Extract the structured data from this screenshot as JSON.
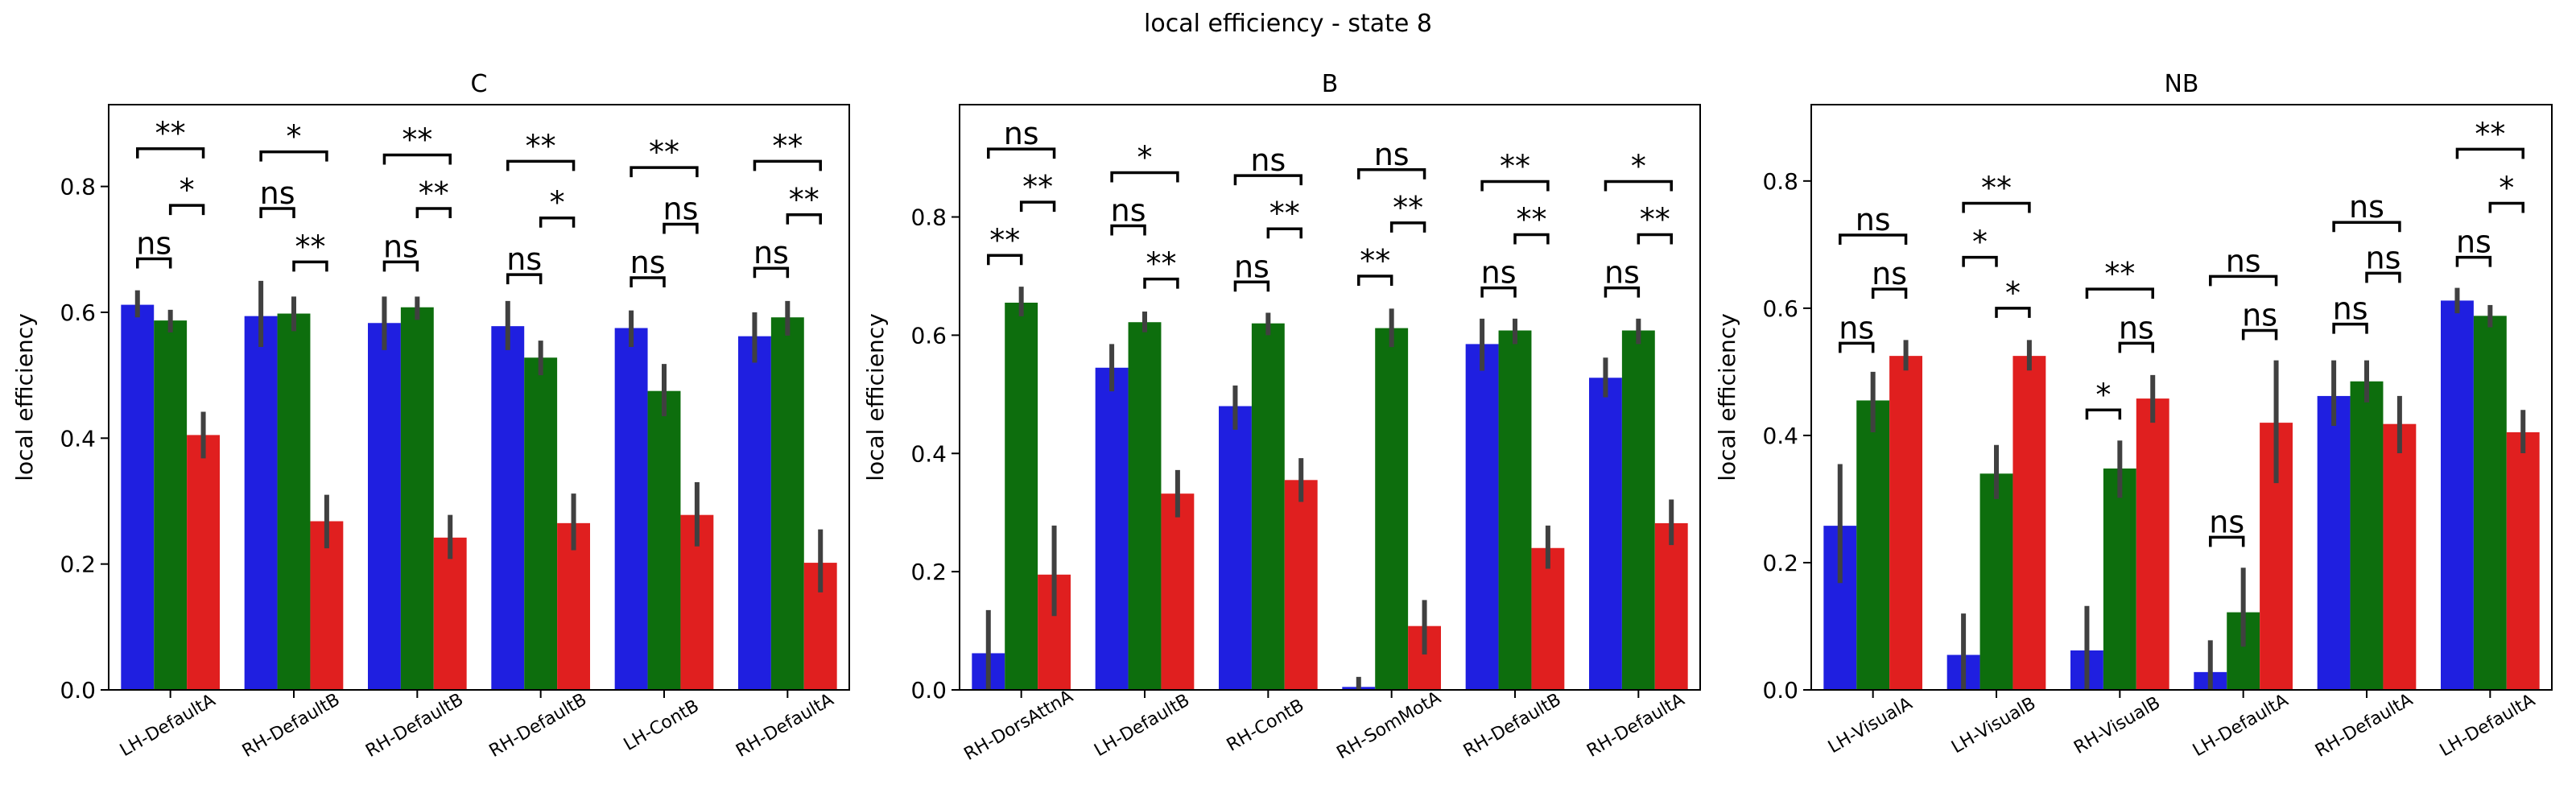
{
  "suptitle": "local efficiency - state 8",
  "colors": {
    "series": [
      "#1f1fe0",
      "#0d6e0d",
      "#e01f1f"
    ],
    "error_bar": "#404040"
  },
  "chart_data": [
    {
      "type": "bar",
      "title": "C",
      "ylabel": "local efficiency",
      "ylim": [
        0,
        0.93
      ],
      "yticks": [
        0.0,
        0.2,
        0.4,
        0.6,
        0.8
      ],
      "categories": [
        "LH-DefaultA",
        "RH-DefaultB",
        "RH-DefaultB",
        "RH-DefaultB",
        "LH-ContB",
        "RH-DefaultA"
      ],
      "series": [
        {
          "values": [
            0.612,
            0.594,
            0.583,
            0.578,
            0.575,
            0.562
          ],
          "err_low": [
            0.592,
            0.545,
            0.54,
            0.54,
            0.545,
            0.52
          ],
          "err_high": [
            0.635,
            0.65,
            0.625,
            0.618,
            0.603,
            0.6
          ]
        },
        {
          "values": [
            0.587,
            0.598,
            0.608,
            0.528,
            0.475,
            0.592
          ],
          "err_low": [
            0.568,
            0.57,
            0.588,
            0.5,
            0.435,
            0.563
          ],
          "err_high": [
            0.604,
            0.625,
            0.625,
            0.555,
            0.518,
            0.618
          ]
        },
        {
          "values": [
            0.405,
            0.268,
            0.242,
            0.265,
            0.278,
            0.202
          ],
          "err_low": [
            0.368,
            0.225,
            0.208,
            0.222,
            0.228,
            0.155
          ],
          "err_high": [
            0.442,
            0.31,
            0.278,
            0.312,
            0.33,
            0.255
          ]
        }
      ],
      "annotations": [
        {
          "group": 0,
          "from": 0,
          "to": 1,
          "y": 0.685,
          "label": "ns"
        },
        {
          "group": 0,
          "from": 1,
          "to": 2,
          "y": 0.77,
          "label": "*"
        },
        {
          "group": 0,
          "from": 0,
          "to": 2,
          "y": 0.86,
          "label": "**"
        },
        {
          "group": 1,
          "from": 0,
          "to": 1,
          "y": 0.765,
          "label": "ns"
        },
        {
          "group": 1,
          "from": 1,
          "to": 2,
          "y": 0.68,
          "label": "**"
        },
        {
          "group": 1,
          "from": 0,
          "to": 2,
          "y": 0.855,
          "label": "*"
        },
        {
          "group": 2,
          "from": 0,
          "to": 1,
          "y": 0.68,
          "label": "ns"
        },
        {
          "group": 2,
          "from": 1,
          "to": 2,
          "y": 0.765,
          "label": "**"
        },
        {
          "group": 2,
          "from": 0,
          "to": 2,
          "y": 0.85,
          "label": "**"
        },
        {
          "group": 3,
          "from": 0,
          "to": 1,
          "y": 0.66,
          "label": "ns"
        },
        {
          "group": 3,
          "from": 1,
          "to": 2,
          "y": 0.75,
          "label": "*"
        },
        {
          "group": 3,
          "from": 0,
          "to": 2,
          "y": 0.84,
          "label": "**"
        },
        {
          "group": 4,
          "from": 0,
          "to": 1,
          "y": 0.655,
          "label": "ns"
        },
        {
          "group": 4,
          "from": 1,
          "to": 2,
          "y": 0.74,
          "label": "ns"
        },
        {
          "group": 4,
          "from": 0,
          "to": 2,
          "y": 0.83,
          "label": "**"
        },
        {
          "group": 5,
          "from": 0,
          "to": 1,
          "y": 0.67,
          "label": "ns"
        },
        {
          "group": 5,
          "from": 1,
          "to": 2,
          "y": 0.755,
          "label": "**"
        },
        {
          "group": 5,
          "from": 0,
          "to": 2,
          "y": 0.84,
          "label": "**"
        }
      ]
    },
    {
      "type": "bar",
      "title": "B",
      "ylabel": "local efficiency",
      "ylim": [
        0,
        0.99
      ],
      "yticks": [
        0.0,
        0.2,
        0.4,
        0.6,
        0.8
      ],
      "categories": [
        "RH-DorsAttnA",
        "LH-DefaultB",
        "RH-ContB",
        "RH-SomMotA",
        "RH-DefaultB",
        "RH-DefaultA"
      ],
      "series": [
        {
          "values": [
            0.062,
            0.545,
            0.48,
            0.005,
            0.585,
            0.528
          ],
          "err_low": [
            0.0,
            0.505,
            0.44,
            0.0,
            0.54,
            0.495
          ],
          "err_high": [
            0.135,
            0.585,
            0.515,
            0.022,
            0.628,
            0.562
          ]
        },
        {
          "values": [
            0.655,
            0.622,
            0.62,
            0.612,
            0.608,
            0.608
          ],
          "err_low": [
            0.632,
            0.605,
            0.6,
            0.58,
            0.585,
            0.585
          ],
          "err_high": [
            0.682,
            0.64,
            0.638,
            0.645,
            0.628,
            0.628
          ]
        },
        {
          "values": [
            0.195,
            0.332,
            0.355,
            0.108,
            0.24,
            0.282
          ],
          "err_low": [
            0.125,
            0.292,
            0.318,
            0.06,
            0.205,
            0.245
          ],
          "err_high": [
            0.278,
            0.372,
            0.392,
            0.152,
            0.278,
            0.322
          ]
        }
      ],
      "annotations": [
        {
          "group": 0,
          "from": 0,
          "to": 1,
          "y": 0.735,
          "label": "**"
        },
        {
          "group": 0,
          "from": 1,
          "to": 2,
          "y": 0.825,
          "label": "**"
        },
        {
          "group": 0,
          "from": 0,
          "to": 2,
          "y": 0.915,
          "label": "ns"
        },
        {
          "group": 1,
          "from": 0,
          "to": 1,
          "y": 0.785,
          "label": "ns"
        },
        {
          "group": 1,
          "from": 1,
          "to": 2,
          "y": 0.695,
          "label": "**"
        },
        {
          "group": 1,
          "from": 0,
          "to": 2,
          "y": 0.875,
          "label": "*"
        },
        {
          "group": 2,
          "from": 0,
          "to": 1,
          "y": 0.69,
          "label": "ns"
        },
        {
          "group": 2,
          "from": 1,
          "to": 2,
          "y": 0.78,
          "label": "**"
        },
        {
          "group": 2,
          "from": 0,
          "to": 2,
          "y": 0.87,
          "label": "ns"
        },
        {
          "group": 3,
          "from": 0,
          "to": 1,
          "y": 0.7,
          "label": "**"
        },
        {
          "group": 3,
          "from": 1,
          "to": 2,
          "y": 0.79,
          "label": "**"
        },
        {
          "group": 3,
          "from": 0,
          "to": 2,
          "y": 0.88,
          "label": "ns"
        },
        {
          "group": 4,
          "from": 0,
          "to": 1,
          "y": 0.68,
          "label": "ns"
        },
        {
          "group": 4,
          "from": 1,
          "to": 2,
          "y": 0.77,
          "label": "**"
        },
        {
          "group": 4,
          "from": 0,
          "to": 2,
          "y": 0.86,
          "label": "**"
        },
        {
          "group": 5,
          "from": 0,
          "to": 1,
          "y": 0.68,
          "label": "ns"
        },
        {
          "group": 5,
          "from": 1,
          "to": 2,
          "y": 0.77,
          "label": "**"
        },
        {
          "group": 5,
          "from": 0,
          "to": 2,
          "y": 0.86,
          "label": "*"
        }
      ]
    },
    {
      "type": "bar",
      "title": "NB",
      "ylabel": "local efficiency",
      "ylim": [
        0,
        0.92
      ],
      "yticks": [
        0.0,
        0.2,
        0.4,
        0.6,
        0.8
      ],
      "categories": [
        "LH-VisualA",
        "LH-VisualB",
        "RH-VisualB",
        "LH-DefaultA",
        "RH-DefaultA",
        "LH-DefaultA"
      ],
      "series": [
        {
          "values": [
            0.258,
            0.055,
            0.062,
            0.028,
            0.462,
            0.612
          ],
          "err_low": [
            0.168,
            0.0,
            0.0,
            0.0,
            0.415,
            0.592
          ],
          "err_high": [
            0.355,
            0.12,
            0.132,
            0.078,
            0.518,
            0.632
          ]
        },
        {
          "values": [
            0.455,
            0.34,
            0.348,
            0.122,
            0.485,
            0.588
          ],
          "err_low": [
            0.405,
            0.3,
            0.302,
            0.068,
            0.452,
            0.57
          ],
          "err_high": [
            0.5,
            0.385,
            0.392,
            0.192,
            0.518,
            0.605
          ]
        },
        {
          "values": [
            0.525,
            0.525,
            0.458,
            0.42,
            0.418,
            0.405
          ],
          "err_low": [
            0.502,
            0.502,
            0.42,
            0.325,
            0.372,
            0.372
          ],
          "err_high": [
            0.55,
            0.55,
            0.495,
            0.518,
            0.462,
            0.44
          ]
        }
      ],
      "annotations": [
        {
          "group": 0,
          "from": 0,
          "to": 1,
          "y": 0.545,
          "label": "ns"
        },
        {
          "group": 0,
          "from": 1,
          "to": 2,
          "y": 0.63,
          "label": "ns"
        },
        {
          "group": 0,
          "from": 0,
          "to": 2,
          "y": 0.715,
          "label": "ns"
        },
        {
          "group": 1,
          "from": 0,
          "to": 1,
          "y": 0.68,
          "label": "*"
        },
        {
          "group": 1,
          "from": 1,
          "to": 2,
          "y": 0.6,
          "label": "*"
        },
        {
          "group": 1,
          "from": 0,
          "to": 2,
          "y": 0.765,
          "label": "**"
        },
        {
          "group": 2,
          "from": 0,
          "to": 1,
          "y": 0.44,
          "label": "*"
        },
        {
          "group": 2,
          "from": 1,
          "to": 2,
          "y": 0.545,
          "label": "ns"
        },
        {
          "group": 2,
          "from": 0,
          "to": 2,
          "y": 0.63,
          "label": "**"
        },
        {
          "group": 3,
          "from": 0,
          "to": 1,
          "y": 0.24,
          "label": "ns"
        },
        {
          "group": 3,
          "from": 1,
          "to": 2,
          "y": 0.565,
          "label": "ns"
        },
        {
          "group": 3,
          "from": 0,
          "to": 2,
          "y": 0.65,
          "label": "ns"
        },
        {
          "group": 4,
          "from": 0,
          "to": 1,
          "y": 0.575,
          "label": "ns"
        },
        {
          "group": 4,
          "from": 1,
          "to": 2,
          "y": 0.655,
          "label": "ns"
        },
        {
          "group": 4,
          "from": 0,
          "to": 2,
          "y": 0.735,
          "label": "ns"
        },
        {
          "group": 5,
          "from": 0,
          "to": 1,
          "y": 0.68,
          "label": "ns"
        },
        {
          "group": 5,
          "from": 1,
          "to": 2,
          "y": 0.765,
          "label": "*"
        },
        {
          "group": 5,
          "from": 0,
          "to": 2,
          "y": 0.85,
          "label": "**"
        }
      ]
    }
  ]
}
